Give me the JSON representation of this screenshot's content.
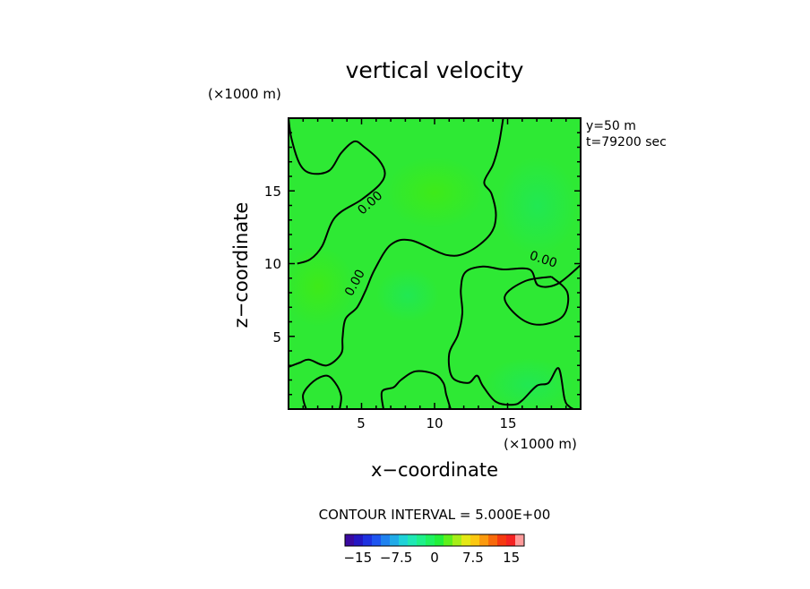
{
  "chart_data": {
    "type": "heatmap",
    "title": "vertical velocity",
    "xlabel": "x−coordinate",
    "ylabel": "z−coordinate",
    "x_unit": "(×1000 m)",
    "y_unit": "(×1000 m)",
    "xlim": [
      0,
      20
    ],
    "ylim": [
      0,
      20
    ],
    "x_ticks": [
      5,
      10,
      15
    ],
    "y_ticks": [
      5,
      10,
      15
    ],
    "x_tick_labels": [
      "5",
      "10",
      "15"
    ],
    "y_tick_labels": [
      "5",
      "10",
      "15"
    ],
    "info_lines": [
      "y=50  m",
      "t=79200 sec"
    ],
    "contour_interval": "CONTOUR INTERVAL = 5.000E+00",
    "contour_labels": [
      "0.00",
      "0.00",
      "0.00"
    ],
    "colorbar": {
      "colors": [
        "#3a0aa0",
        "#2417c2",
        "#1e32e0",
        "#1e55f0",
        "#1f82ef",
        "#21abe8",
        "#1fd2d8",
        "#1fe8b4",
        "#1ef08a",
        "#1ef260",
        "#22f03a",
        "#5ef01c",
        "#a6ee18",
        "#e4e814",
        "#fbc811",
        "#fb9a0e",
        "#f86a0b",
        "#f63a10",
        "#f52222",
        "#ff9a9a"
      ],
      "tick_labels": [
        "−15",
        "−7.5",
        "0",
        "7.5",
        "15"
      ],
      "tick_values": [
        -15,
        -7.5,
        0,
        7.5,
        15
      ],
      "range": [
        -17.5,
        17.5
      ]
    },
    "field_description": "field is almost uniformly near zero (green) across the domain with small positive patches",
    "contours": [
      {
        "level": 0,
        "points": [
          [
            0.0,
            20.0
          ],
          [
            0.2,
            18.6
          ],
          [
            0.8,
            16.8
          ],
          [
            1.6,
            16.2
          ],
          [
            2.8,
            16.4
          ],
          [
            3.6,
            17.6
          ],
          [
            4.5,
            18.4
          ],
          [
            5.2,
            18.0
          ],
          [
            6.2,
            17.1
          ],
          [
            6.6,
            16.2
          ],
          [
            6.2,
            15.4
          ],
          [
            5.0,
            14.4
          ],
          [
            3.2,
            13.2
          ],
          [
            2.3,
            11.2
          ],
          [
            1.5,
            10.3
          ],
          [
            0.6,
            10.0
          ]
        ]
      },
      {
        "level": 0,
        "points": [
          [
            14.7,
            20.0
          ],
          [
            14.4,
            18.2
          ],
          [
            14.0,
            16.8
          ],
          [
            13.4,
            15.6
          ],
          [
            13.9,
            14.8
          ],
          [
            14.2,
            13.3
          ],
          [
            13.8,
            12.0
          ],
          [
            12.3,
            10.8
          ],
          [
            10.8,
            10.6
          ],
          [
            8.4,
            11.6
          ],
          [
            7.0,
            11.3
          ],
          [
            5.9,
            9.6
          ],
          [
            5.3,
            8.2
          ],
          [
            4.7,
            7.0
          ],
          [
            3.9,
            6.2
          ],
          [
            3.7,
            4.9
          ],
          [
            3.6,
            3.8
          ],
          [
            2.6,
            3.0
          ],
          [
            1.4,
            3.4
          ],
          [
            0.8,
            3.2
          ],
          [
            0.0,
            2.9
          ]
        ]
      },
      {
        "level": 0,
        "points": [
          [
            20.0,
            9.9
          ],
          [
            18.4,
            8.6
          ],
          [
            17.1,
            8.5
          ],
          [
            16.5,
            9.6
          ],
          [
            14.7,
            9.6
          ],
          [
            13.3,
            9.8
          ],
          [
            12.1,
            9.4
          ],
          [
            11.8,
            8.2
          ],
          [
            11.9,
            6.6
          ],
          [
            11.6,
            5.1
          ],
          [
            11.0,
            3.8
          ],
          [
            11.2,
            2.2
          ],
          [
            12.3,
            1.8
          ],
          [
            12.9,
            2.3
          ],
          [
            13.3,
            1.6
          ],
          [
            14.2,
            0.5
          ],
          [
            15.4,
            0.3
          ],
          [
            16.0,
            0.6
          ],
          [
            17.0,
            1.6
          ],
          [
            17.8,
            1.8
          ],
          [
            18.5,
            2.8
          ],
          [
            18.9,
            0.7
          ],
          [
            19.2,
            0.2
          ],
          [
            19.5,
            0.0
          ]
        ]
      },
      {
        "level": 0,
        "points": [
          [
            18.0,
            9.1
          ],
          [
            19.1,
            8.0
          ],
          [
            18.8,
            6.4
          ],
          [
            17.2,
            5.8
          ],
          [
            15.8,
            6.3
          ],
          [
            14.8,
            7.7
          ],
          [
            16.2,
            8.8
          ],
          [
            18.0,
            9.1
          ]
        ]
      },
      {
        "level": 0,
        "points": [
          [
            6.5,
            0.0
          ],
          [
            6.4,
            1.2
          ],
          [
            7.2,
            1.5
          ],
          [
            7.7,
            2.0
          ],
          [
            8.7,
            2.6
          ],
          [
            10.0,
            2.4
          ],
          [
            10.6,
            1.8
          ],
          [
            10.8,
            1.0
          ],
          [
            11.1,
            0.0
          ]
        ]
      },
      {
        "level": 0,
        "points": [
          [
            1.2,
            0.0
          ],
          [
            1.0,
            1.0
          ],
          [
            1.7,
            1.9
          ],
          [
            2.6,
            2.3
          ],
          [
            3.2,
            1.8
          ],
          [
            3.6,
            0.9
          ],
          [
            3.5,
            0.0
          ]
        ]
      }
    ]
  }
}
